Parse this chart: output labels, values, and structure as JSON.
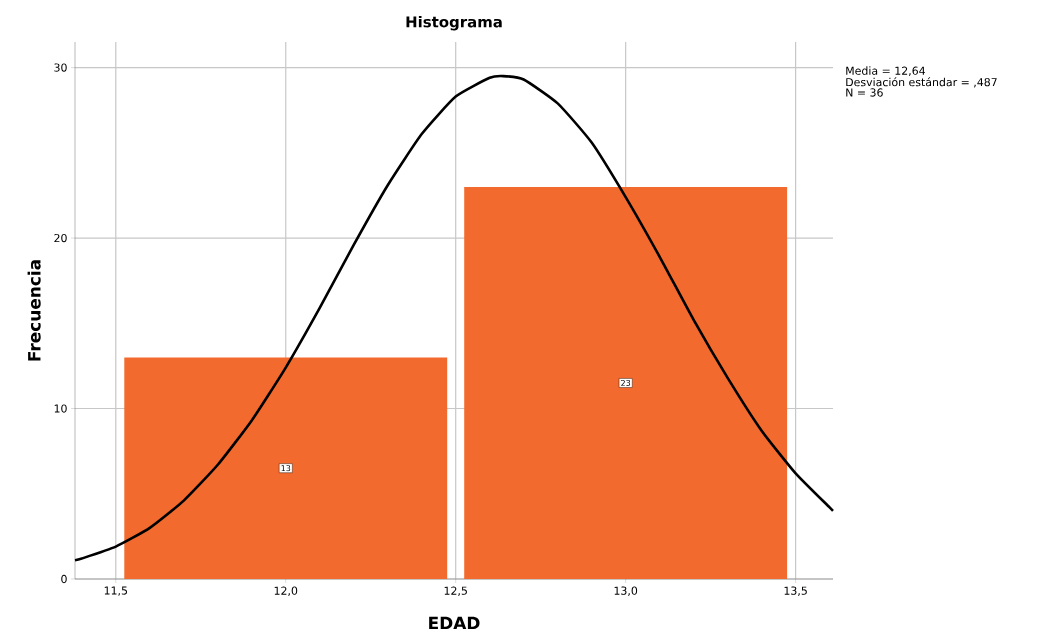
{
  "chart_data": {
    "type": "histogram",
    "title": "Histograma",
    "xlabel": "EDAD",
    "ylabel": "Frecuencia",
    "bins": [
      11.5,
      12.5,
      13.5
    ],
    "values": [
      13,
      23
    ],
    "color": "#f26a2d",
    "value_labels": [
      "13",
      "23"
    ],
    "series": [
      {
        "type": "line",
        "color": "#000000",
        "x": [
          11.38,
          11.4,
          11.5,
          11.6,
          11.7,
          11.8,
          11.9,
          12.0,
          12.1,
          12.2,
          12.3,
          12.4,
          12.5,
          12.6,
          12.64,
          12.7,
          12.8,
          12.9,
          13.0,
          13.1,
          13.2,
          13.3,
          13.4,
          13.5,
          13.6,
          13.61
        ],
        "values": [
          1.1,
          1.2,
          1.9,
          3.0,
          4.6,
          6.7,
          9.3,
          12.4,
          15.9,
          19.6,
          23.1,
          26.1,
          28.3,
          29.4,
          29.5,
          29.3,
          27.9,
          25.6,
          22.4,
          18.9,
          15.2,
          11.8,
          8.7,
          6.2,
          4.2,
          4.0
        ]
      }
    ],
    "xlim": [
      11.38,
      13.61
    ],
    "ylim": [
      0,
      31.5
    ],
    "xticks": [
      {
        "value": 11.5,
        "label": "11,5"
      },
      {
        "value": 12.0,
        "label": "12,0"
      },
      {
        "value": 12.5,
        "label": "12,5"
      },
      {
        "value": 13.0,
        "label": "13,0"
      },
      {
        "value": 13.5,
        "label": "13,5"
      }
    ],
    "yticks": [
      0,
      10,
      20,
      30
    ],
    "grid": true,
    "annotations": [
      "Media = 12,64",
      "Desviación estándar = ,487",
      "N = 36"
    ]
  }
}
